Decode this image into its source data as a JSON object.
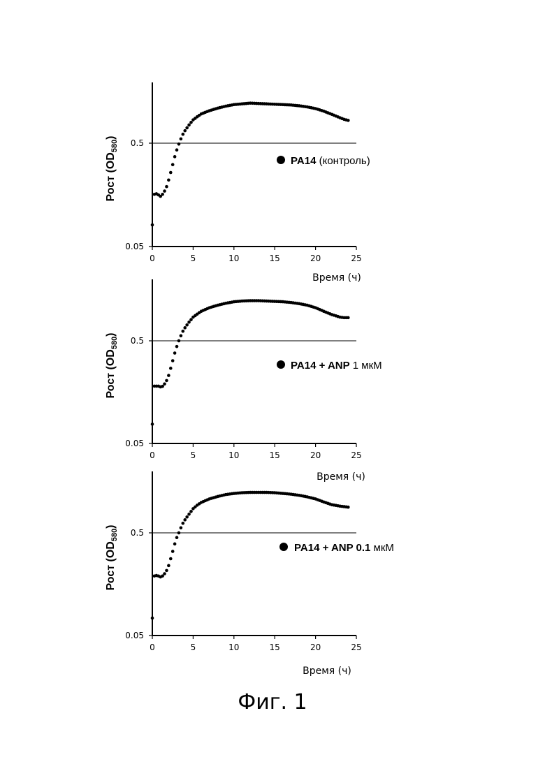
{
  "figure_caption": "Фиг. 1",
  "chart_data": [
    {
      "type": "scatter",
      "ylabel_main": "Рост (OD",
      "ylabel_sub": "580",
      "ylabel_close": ")",
      "xlabel": "Время (ч)",
      "xticks": [
        0,
        5,
        10,
        15,
        20,
        25
      ],
      "yticks": [
        {
          "value": 0.05,
          "label": "0.05"
        },
        {
          "value": 0.5,
          "label": "0.5"
        }
      ],
      "ylim": [
        0.05,
        2.0
      ],
      "xlim": [
        0,
        25
      ],
      "yscale": "log",
      "reference_line": 0.5,
      "legend_bold": "PA14",
      "legend_normal": " (контроль)",
      "series": [
        {
          "x": [
            0,
            0.25,
            0.5,
            0.75,
            1,
            1.25,
            1.5,
            1.75,
            2,
            2.25,
            2.5,
            2.75,
            3,
            3.25,
            3.5,
            3.75,
            4,
            4.5,
            5,
            5.5,
            6,
            7,
            8,
            9,
            10,
            11,
            12,
            13,
            14,
            15,
            16,
            17,
            18,
            19,
            20,
            21,
            22,
            23,
            23.5,
            24
          ],
          "y": [
            0.081,
            0.16,
            0.162,
            0.158,
            0.153,
            0.16,
            0.172,
            0.19,
            0.22,
            0.26,
            0.31,
            0.37,
            0.43,
            0.49,
            0.55,
            0.61,
            0.66,
            0.75,
            0.84,
            0.9,
            0.96,
            1.03,
            1.09,
            1.14,
            1.18,
            1.2,
            1.22,
            1.21,
            1.2,
            1.19,
            1.18,
            1.17,
            1.15,
            1.12,
            1.08,
            1.02,
            0.95,
            0.88,
            0.85,
            0.83
          ]
        }
      ]
    },
    {
      "type": "scatter",
      "ylabel_main": "Рост (OD",
      "ylabel_sub": "580",
      "ylabel_close": ")",
      "xlabel": "Время (ч)",
      "xticks": [
        0,
        5,
        10,
        15,
        20,
        25
      ],
      "yticks": [
        {
          "value": 0.05,
          "label": "0.05"
        },
        {
          "value": 0.5,
          "label": "0.5"
        }
      ],
      "ylim": [
        0.05,
        2.0
      ],
      "xlim": [
        0,
        25
      ],
      "yscale": "log",
      "reference_line": 0.5,
      "legend_bold": "PA14 + ANP",
      "legend_normal": " 1 мкМ",
      "series": [
        {
          "x": [
            0,
            0.25,
            0.5,
            0.75,
            1,
            1.25,
            1.5,
            1.75,
            2,
            2.25,
            2.5,
            2.75,
            3,
            3.25,
            3.5,
            3.75,
            4,
            4.5,
            5,
            5.5,
            6,
            7,
            8,
            9,
            10,
            11,
            12,
            13,
            14,
            15,
            16,
            17,
            18,
            19,
            20,
            21,
            22,
            23,
            23.5,
            24
          ],
          "y": [
            0.077,
            0.181,
            0.181,
            0.181,
            0.178,
            0.18,
            0.19,
            0.205,
            0.23,
            0.27,
            0.32,
            0.38,
            0.44,
            0.5,
            0.56,
            0.62,
            0.67,
            0.76,
            0.85,
            0.91,
            0.97,
            1.05,
            1.11,
            1.16,
            1.2,
            1.22,
            1.23,
            1.23,
            1.22,
            1.21,
            1.2,
            1.18,
            1.15,
            1.11,
            1.05,
            0.97,
            0.9,
            0.85,
            0.84,
            0.84
          ]
        }
      ]
    },
    {
      "type": "scatter",
      "ylabel_main": "Рост (OD",
      "ylabel_sub": "580",
      "ylabel_close": ")",
      "xlabel": "Время (ч)",
      "xticks": [
        0,
        5,
        10,
        15,
        20,
        25
      ],
      "yticks": [
        {
          "value": 0.05,
          "label": "0.05"
        },
        {
          "value": 0.5,
          "label": "0.5"
        }
      ],
      "ylim": [
        0.05,
        2.0
      ],
      "xlim": [
        0,
        25
      ],
      "yscale": "log",
      "reference_line": 0.5,
      "legend_bold": "PA14 + ANP 0.1",
      "legend_normal": " мкМ",
      "series": [
        {
          "x": [
            0,
            0.25,
            0.5,
            0.75,
            1,
            1.25,
            1.5,
            1.75,
            2,
            2.25,
            2.5,
            2.75,
            3,
            3.25,
            3.5,
            3.75,
            4,
            4.5,
            5,
            5.5,
            6,
            7,
            8,
            9,
            10,
            11,
            12,
            13,
            14,
            15,
            16,
            17,
            18,
            19,
            20,
            21,
            22,
            23,
            23.5,
            24
          ],
          "y": [
            0.074,
            0.19,
            0.192,
            0.19,
            0.186,
            0.19,
            0.2,
            0.215,
            0.24,
            0.28,
            0.33,
            0.39,
            0.45,
            0.5,
            0.56,
            0.62,
            0.67,
            0.76,
            0.86,
            0.93,
            0.99,
            1.07,
            1.13,
            1.18,
            1.21,
            1.23,
            1.24,
            1.24,
            1.24,
            1.23,
            1.21,
            1.19,
            1.16,
            1.12,
            1.07,
            1.0,
            0.94,
            0.91,
            0.9,
            0.89
          ]
        }
      ]
    }
  ]
}
